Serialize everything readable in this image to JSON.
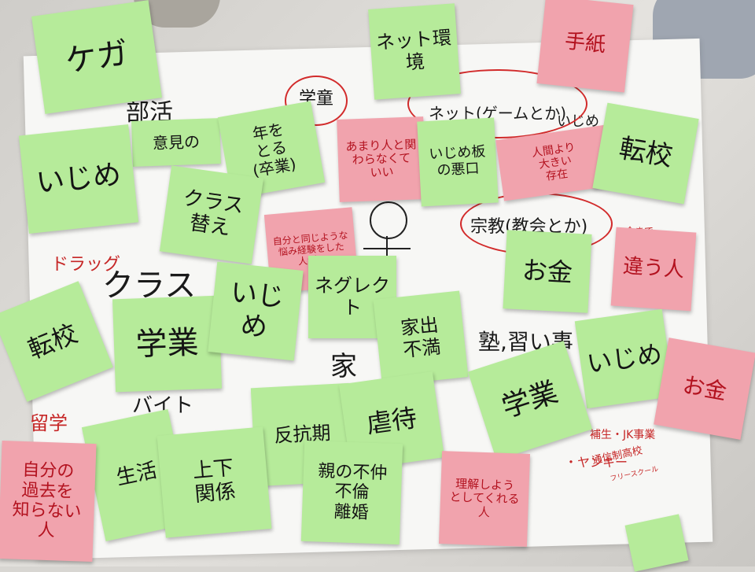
{
  "pen_writing": {
    "bukatsu": "部活",
    "class": "クラス",
    "ie": "家",
    "juku": "塾,習い事",
    "drug": "ドラッグ",
    "baito": "バイト",
    "ryugaku": "留学",
    "net_game": "ネット(ゲームとか)",
    "ijime_top": "いじめ",
    "shukyo": "宗教(教会とか)",
    "ima_made": "今まで",
    "yankee": "・ヤンキー",
    "hosei": "補生・JK事業",
    "tsushin": "通信制高校",
    "free": "フリースクール"
  },
  "notes": {
    "kega": "ケガ",
    "net_kankyo": "ネット環境",
    "tegami": "手紙",
    "gakudo": "学童",
    "iken": "意見の",
    "toshi": "年を\nとる\n(卒業)",
    "amari_hito": "あまり人と関\nわらなくて\nいい",
    "ura_site": "いじめ板\nの悪口",
    "ningen": "人間より\n大きい\n存在",
    "tenko_right": "転校",
    "ijime_left": "いじめ",
    "class_gae": "クラス\n替え",
    "jibun_onaji": "自分と同じような\n悩み経験をした\n人が…",
    "okane_mid": "お金",
    "chigau_hito": "違う人",
    "neglect": "ネグレクト",
    "tenko_left": "転校",
    "gakugyo_left": "学業",
    "ijime_mid": "いじめ",
    "iede_fuman": "家出\n不満",
    "ijime_right": "いじめ",
    "gakugyo_right": "学業",
    "okane_right": "お金",
    "hankoki": "反抗期",
    "gyakutai": "虐待",
    "seikatsu": "生活",
    "jouge_kankei": "上下\n関係",
    "oya_fuwa": "親の不仲\n不倫\n離婚",
    "rikai": "理解しよう\nとしてくれる\n人",
    "kako": "自分の\n過去を\n知らない人"
  },
  "colors": {
    "note_green": "#b6eb9a",
    "note_pink": "#f1a3ad",
    "pen_black": "#1a1a1a",
    "pen_red": "#c62626"
  }
}
